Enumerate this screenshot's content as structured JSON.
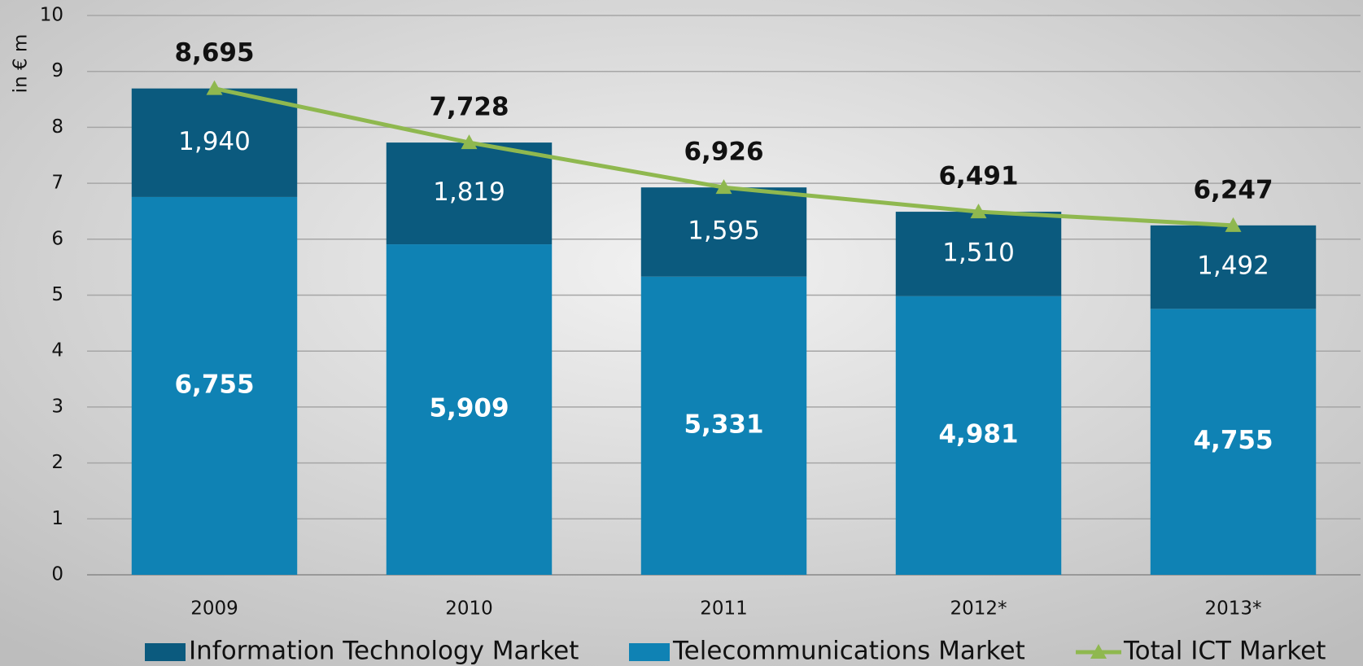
{
  "chart_data": {
    "type": "bar",
    "stacked": true,
    "y_label": "in € m",
    "categories": [
      "2009",
      "2010",
      "2011",
      "2012*",
      "2013*"
    ],
    "series": [
      {
        "name": "Information Technology Market",
        "type": "bar",
        "color": "#0b5a7e",
        "values": [
          1.94,
          1.819,
          1.595,
          1.51,
          1.492
        ],
        "value_labels": [
          "1,940",
          "1,819",
          "1,595",
          "1,510",
          "1,492"
        ]
      },
      {
        "name": "Telecommunications Market",
        "type": "bar",
        "color": "#0f82b4",
        "values": [
          6.755,
          5.909,
          5.331,
          4.981,
          4.755
        ],
        "value_labels": [
          "6,755",
          "5,909",
          "5,331",
          "4,981",
          "4,755"
        ]
      },
      {
        "name": "Total ICT Market",
        "type": "line",
        "color": "#8fb84f",
        "values": [
          8.695,
          7.728,
          6.926,
          6.491,
          6.247
        ],
        "value_labels": [
          "8,695",
          "7,728",
          "6,926",
          "6,491",
          "6,247"
        ]
      }
    ],
    "ylim": [
      0,
      10
    ],
    "yticks": [
      0,
      1,
      2,
      3,
      4,
      5,
      6,
      7,
      8,
      9,
      10
    ],
    "grid": true,
    "legend": "bottom"
  }
}
